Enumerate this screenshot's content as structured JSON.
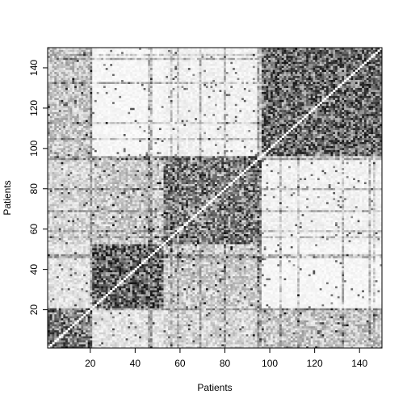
{
  "chart_data": {
    "type": "heatmap",
    "title": "",
    "xlabel": "Patients",
    "ylabel": "Patients",
    "xlim": [
      1,
      150
    ],
    "ylim": [
      1,
      150
    ],
    "x_ticks": [
      20,
      40,
      60,
      80,
      100,
      120,
      140
    ],
    "y_ticks": [
      20,
      40,
      60,
      80,
      100,
      120,
      140
    ],
    "x_tick_labels": [
      "20",
      "40",
      "60",
      "80",
      "100",
      "120",
      "140"
    ],
    "y_tick_labels": [
      "20",
      "40",
      "60",
      "80",
      "100",
      "120",
      "140"
    ],
    "n_patients": 150,
    "clusters": [
      {
        "range": [
          1,
          20
        ],
        "within_similarity": 0.55
      },
      {
        "range": [
          21,
          52
        ],
        "within_similarity": 0.62
      },
      {
        "range": [
          53,
          96
        ],
        "within_similarity": 0.52
      },
      {
        "range": [
          97,
          150
        ],
        "within_similarity": 0.6
      }
    ],
    "between_cluster_similarity": {
      "1-2": 0.12,
      "1-3": 0.18,
      "1-4": 0.25,
      "2-3": 0.22,
      "2-4": 0.04,
      "3-4": 0.06
    },
    "colors": {
      "low": "#ffffff",
      "high": "#000000",
      "frame": "#000000"
    },
    "grid": false,
    "legend": "none"
  }
}
